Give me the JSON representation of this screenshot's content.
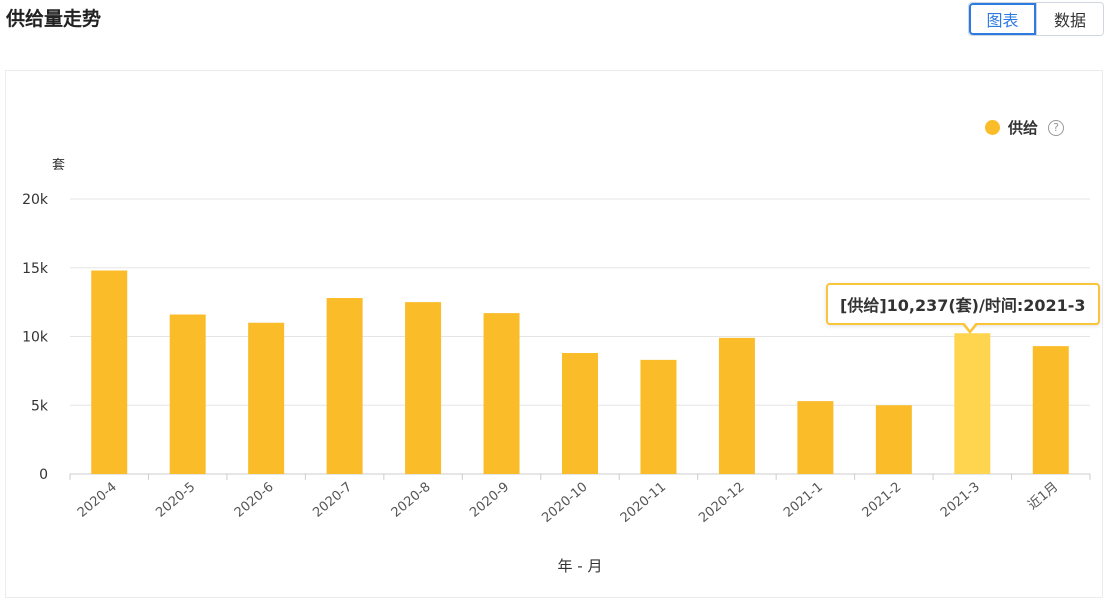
{
  "page": {
    "title": "供给量走势"
  },
  "view_toggle": {
    "chart_label": "图表",
    "data_label": "数据",
    "active": "chart"
  },
  "legend": {
    "label": "供给",
    "color": "#fbbc2a",
    "help_icon": "question-circle-icon",
    "help_glyph": "?"
  },
  "tooltip": {
    "text": "[供给]10,237(套)/时间:2021-3"
  },
  "colors": {
    "bar": "#fbbc2a",
    "bar_highlight": "#ffd54f",
    "grid": "#e5e5e5",
    "axis": "#cccccc",
    "tooltip_border": "#fbc53a",
    "accent": "#2d7be0"
  },
  "chart_data": {
    "type": "bar",
    "ylabel": "套",
    "xlabel": "年 - 月",
    "ylim": [
      0,
      20000
    ],
    "yticks": [
      0,
      5000,
      10000,
      15000,
      20000
    ],
    "ytick_labels": [
      "0",
      "5k",
      "10k",
      "15k",
      "20k"
    ],
    "grid": true,
    "legend_position": "top-right",
    "categories": [
      "2020-4",
      "2020-5",
      "2020-6",
      "2020-7",
      "2020-8",
      "2020-9",
      "2020-10",
      "2020-11",
      "2020-12",
      "2021-1",
      "2021-2",
      "2021-3",
      "近1月"
    ],
    "series": [
      {
        "name": "供给",
        "values": [
          14800,
          11600,
          11000,
          12800,
          12500,
          11700,
          8800,
          8300,
          9900,
          5300,
          5000,
          10237,
          9300
        ]
      }
    ],
    "highlighted_category": "2021-3"
  }
}
